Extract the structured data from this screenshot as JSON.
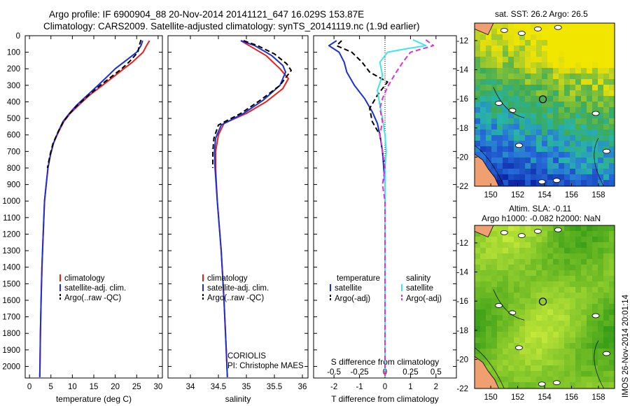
{
  "header": {
    "title_line1": "Argo profile: IF 6900904_88 20-Nov-2014 20141121_647 16.029S 153.87E",
    "title_line2": "Climatology: CARS2009. Satellite-adjusted climatology: synTS_20141119.nc (1.9d earlier)"
  },
  "colors": {
    "climatology": "#e8201c",
    "satellite": "#1c2fd6",
    "argo": "#000000",
    "sal_satellite": "#3ee6e6",
    "sal_argo": "#e030d8"
  },
  "depth_axis": {
    "ticks": [
      0,
      100,
      200,
      300,
      400,
      500,
      600,
      700,
      800,
      900,
      1000,
      1100,
      1200,
      1300,
      1400,
      1500,
      1600,
      1700,
      1800,
      1900,
      2000
    ],
    "range": [
      0,
      2070
    ]
  },
  "chart_data": [
    {
      "type": "line",
      "name": "temperature",
      "xlabel": "temperature (deg C)",
      "xlim": [
        -1,
        31
      ],
      "xticks": [
        0,
        5,
        10,
        15,
        20,
        25,
        30
      ],
      "series": [
        {
          "name": "climatology",
          "role": "climatology",
          "points": [
            [
              28.0,
              30
            ],
            [
              27.3,
              60
            ],
            [
              26.5,
              100
            ],
            [
              24,
              160
            ],
            [
              22,
              200
            ],
            [
              19.5,
              250
            ],
            [
              17,
              300
            ],
            [
              14,
              360
            ],
            [
              11.5,
              420
            ],
            [
              9.5,
              470
            ],
            [
              8,
              520
            ],
            [
              6.8,
              580
            ],
            [
              5.6,
              650
            ],
            [
              4.9,
              720
            ],
            [
              4.3,
              800
            ],
            [
              3.9,
              900
            ],
            [
              3.5,
              1000
            ],
            [
              3.2,
              1200
            ],
            [
              2.9,
              1400
            ],
            [
              2.7,
              1600
            ],
            [
              2.55,
              1800
            ],
            [
              2.45,
              2000
            ],
            [
              2.4,
              2065
            ]
          ]
        },
        {
          "name": "satellite-adj. clim.",
          "role": "satellite",
          "points": [
            [
              26.4,
              30
            ],
            [
              26,
              60
            ],
            [
              25,
              100
            ],
            [
              22,
              160
            ],
            [
              20,
              200
            ],
            [
              18,
              250
            ],
            [
              16,
              300
            ],
            [
              13.5,
              360
            ],
            [
              11,
              420
            ],
            [
              9.3,
              470
            ],
            [
              7.8,
              520
            ],
            [
              6.7,
              580
            ],
            [
              5.6,
              650
            ],
            [
              4.9,
              720
            ],
            [
              4.3,
              800
            ],
            [
              3.9,
              900
            ],
            [
              3.5,
              1000
            ],
            [
              3.2,
              1200
            ],
            [
              2.9,
              1400
            ],
            [
              2.7,
              1600
            ],
            [
              2.55,
              1800
            ],
            [
              2.45,
              2000
            ],
            [
              2.4,
              2065
            ]
          ]
        },
        {
          "name": "Argo(..raw -QC)",
          "role": "argo",
          "points": [
            [
              26,
              25
            ],
            [
              25.6,
              60
            ],
            [
              25.3,
              100
            ],
            [
              23.2,
              160
            ],
            [
              21.5,
              200
            ],
            [
              19,
              250
            ],
            [
              16.5,
              300
            ],
            [
              13.8,
              360
            ],
            [
              11.2,
              420
            ],
            [
              9.4,
              470
            ],
            [
              7.9,
              520
            ],
            [
              6.7,
              580
            ],
            [
              5.5,
              650
            ],
            [
              4.8,
              720
            ],
            [
              4.2,
              800
            ]
          ]
        }
      ],
      "legend": [
        {
          "label": "climatology",
          "role": "climatology"
        },
        {
          "label": "satellite-adj. clim.",
          "role": "satellite"
        },
        {
          "label": "Argo(..raw -QC)",
          "role": "argo"
        }
      ]
    },
    {
      "type": "line",
      "name": "salinity",
      "xlabel": "salinity",
      "xlim": [
        33.6,
        36.1
      ],
      "xticks": [
        34,
        34.5,
        35,
        35.5,
        36
      ],
      "xtick_labels": [
        "34",
        "34.5",
        "35",
        "35.5",
        "36"
      ],
      "series": [
        {
          "name": "climatology",
          "role": "climatology",
          "points": [
            [
              34.9,
              30
            ],
            [
              35.05,
              60
            ],
            [
              35.35,
              120
            ],
            [
              35.6,
              200
            ],
            [
              35.75,
              260
            ],
            [
              35.65,
              320
            ],
            [
              35.35,
              400
            ],
            [
              35,
              470
            ],
            [
              34.6,
              530
            ],
            [
              34.5,
              600
            ],
            [
              34.45,
              700
            ],
            [
              34.45,
              800
            ],
            [
              34.48,
              1000
            ],
            [
              34.55,
              1300
            ],
            [
              34.6,
              1600
            ],
            [
              34.64,
              1900
            ],
            [
              34.66,
              2065
            ]
          ]
        },
        {
          "name": "satellite-adj. clim.",
          "role": "satellite",
          "points": [
            [
              34.9,
              30
            ],
            [
              35.15,
              60
            ],
            [
              35.45,
              120
            ],
            [
              35.65,
              180
            ],
            [
              35.7,
              220
            ],
            [
              35.6,
              300
            ],
            [
              35.3,
              390
            ],
            [
              34.95,
              470
            ],
            [
              34.55,
              540
            ],
            [
              34.45,
              620
            ],
            [
              34.43,
              700
            ],
            [
              34.44,
              800
            ],
            [
              34.48,
              1000
            ],
            [
              34.55,
              1300
            ],
            [
              34.6,
              1600
            ],
            [
              34.64,
              1900
            ],
            [
              34.66,
              2065
            ]
          ]
        },
        {
          "name": "Argo(..raw -QC)",
          "role": "argo",
          "points": [
            [
              34.95,
              30
            ],
            [
              35.2,
              60
            ],
            [
              35.5,
              110
            ],
            [
              35.72,
              170
            ],
            [
              35.8,
              210
            ],
            [
              35.6,
              300
            ],
            [
              35.25,
              390
            ],
            [
              34.9,
              470
            ],
            [
              34.5,
              540
            ],
            [
              34.42,
              620
            ],
            [
              34.4,
              700
            ],
            [
              34.4,
              800
            ]
          ]
        }
      ],
      "legend": [
        {
          "label": "climatology",
          "role": "climatology"
        },
        {
          "label": "satellite-adj. clim.",
          "role": "satellite"
        },
        {
          "label": "Argo(..raw -QC)",
          "role": "argo"
        }
      ],
      "annotation": [
        "CORIOLIS",
        "PI: Christophe MAES"
      ]
    },
    {
      "type": "line",
      "name": "differences",
      "xlabel": "T difference from climatology",
      "xlabel_top": "S difference from climatology",
      "xlim": [
        -2.8,
        2.8
      ],
      "xticks": [
        -2,
        -1,
        0,
        1,
        2
      ],
      "xticks_top": [
        -0.5,
        -0.25,
        0,
        0.25,
        0.5
      ],
      "xtick_top_labels": [
        "-0.5",
        "-0.25",
        "0",
        "0.25",
        "0.5"
      ],
      "s_scale": 4,
      "series": [
        {
          "name": "temperature satellite",
          "role": "satellite",
          "points": [
            [
              -1.9,
              30
            ],
            [
              -2.2,
              60
            ],
            [
              -1.8,
              100
            ],
            [
              -1.6,
              160
            ],
            [
              -1.5,
              220
            ],
            [
              -1.2,
              300
            ],
            [
              -0.8,
              380
            ],
            [
              -0.5,
              460
            ],
            [
              -0.3,
              530
            ],
            [
              -0.2,
              600
            ],
            [
              -0.1,
              700
            ],
            [
              -0.05,
              800
            ],
            [
              0,
              900
            ],
            [
              0,
              1200
            ],
            [
              0,
              1600
            ],
            [
              0,
              2000
            ],
            [
              0,
              2065
            ]
          ]
        },
        {
          "name": "temperature Argo(-adj)",
          "role": "argo",
          "points": [
            [
              -1.7,
              30
            ],
            [
              -1.9,
              60
            ],
            [
              -1.3,
              100
            ],
            [
              -0.9,
              160
            ],
            [
              -0.6,
              220
            ],
            [
              0.1,
              280
            ],
            [
              -0.3,
              360
            ],
            [
              -0.6,
              440
            ],
            [
              -0.5,
              520
            ],
            [
              -0.2,
              600
            ],
            [
              -0.1,
              700
            ],
            [
              0,
              800
            ]
          ]
        },
        {
          "name": "salinity satellite",
          "role": "sal_satellite",
          "points": [
            [
              1.1,
              25
            ],
            [
              1.6,
              60
            ],
            [
              0.8,
              80
            ],
            [
              0.1,
              100
            ],
            [
              -0.2,
              160
            ],
            [
              -0.1,
              240
            ],
            [
              -0.3,
              330
            ],
            [
              -0.2,
              420
            ],
            [
              -0.1,
              500
            ],
            [
              0,
              600
            ],
            [
              0.05,
              700
            ],
            [
              0,
              800
            ],
            [
              0,
              1200
            ],
            [
              0,
              2065
            ]
          ]
        },
        {
          "name": "salinity Argo(-adj)",
          "role": "sal_argo",
          "points": [
            [
              1.6,
              25
            ],
            [
              1.9,
              60
            ],
            [
              1.0,
              100
            ],
            [
              0.7,
              160
            ],
            [
              0.4,
              230
            ],
            [
              0.1,
              310
            ],
            [
              -0.1,
              380
            ],
            [
              -0.2,
              440
            ],
            [
              -0.1,
              520
            ],
            [
              -0.2,
              600
            ],
            [
              -0.1,
              700
            ],
            [
              0,
              800
            ],
            [
              -0.1,
              900
            ],
            [
              0,
              1000
            ],
            [
              0,
              2065
            ]
          ]
        }
      ],
      "legend_headers": [
        "temperature",
        "salinity"
      ],
      "legend": [
        {
          "label": "satellite",
          "role": "satellite"
        },
        {
          "label": "Argo(-adj)",
          "role": "argo"
        },
        {
          "label": "satellite",
          "role": "sal_satellite"
        },
        {
          "label": "Argo(-adj)",
          "role": "sal_argo"
        }
      ]
    }
  ],
  "maps": {
    "sst": {
      "title": "sat. SST: 26.2 Argo: 26.5"
    },
    "sla": {
      "title_line1": "Altim. SLA: -0.11",
      "title_line2": "Argo h1000: -0.082 h2000: NaN"
    },
    "lat_ticks": [
      "-12",
      "-14",
      "-16",
      "-18",
      "-20",
      "-22"
    ],
    "lon_ticks": [
      "150",
      "152",
      "154",
      "156",
      "158"
    ],
    "lat_values": [
      -12,
      -14,
      -16,
      -18,
      -20,
      -22
    ],
    "lon_values": [
      150,
      152,
      154,
      156,
      158
    ],
    "lon_range": [
      148.8,
      159.2
    ],
    "lat_range": [
      -22,
      -10.8
    ],
    "argo_position": {
      "lon": 153.87,
      "lat": -16.03
    }
  },
  "stamp": "IMOS 26-Nov-2014 20:01:14"
}
